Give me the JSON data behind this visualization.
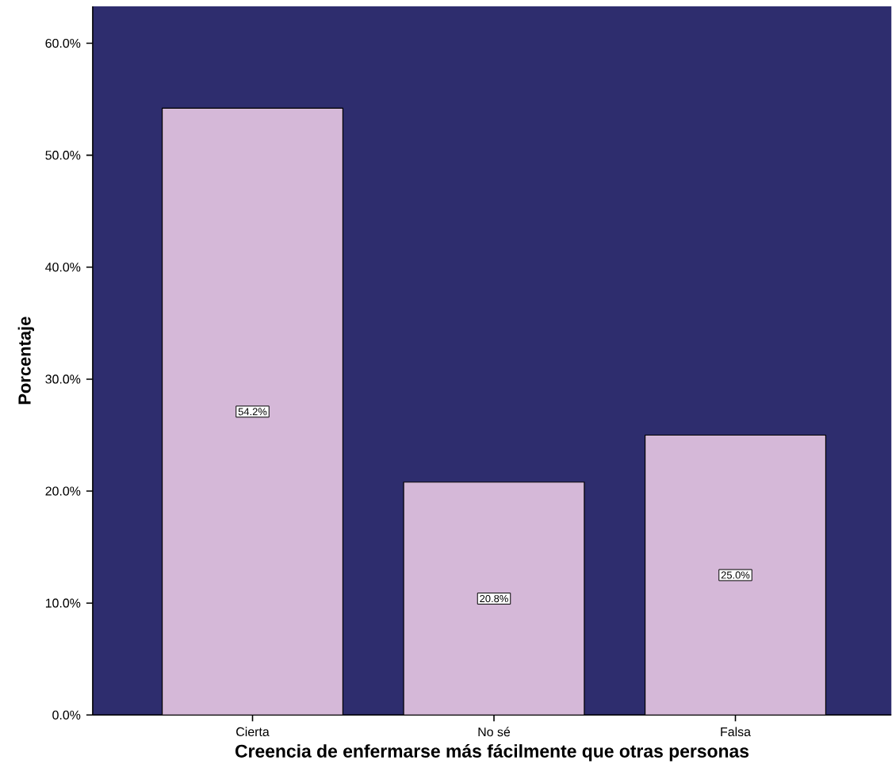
{
  "chart_data": {
    "type": "bar",
    "xlabel": "Creencia de enfermarse más fácilmente que otras personas",
    "ylabel": "Porcentaje",
    "categories": [
      "Cierta",
      "No sé",
      "Falsa"
    ],
    "values": [
      54.2,
      20.8,
      25.0
    ],
    "value_labels": [
      "54.2%",
      "20.8%",
      "25.0%"
    ],
    "color": "#d5b8d8",
    "ylim": [
      0,
      63.3
    ],
    "yticks": [
      {
        "value": 0,
        "label": "0.0%"
      },
      {
        "value": 10,
        "label": "10.0%"
      },
      {
        "value": 20,
        "label": "20.0%"
      },
      {
        "value": 30,
        "label": "30.0%"
      },
      {
        "value": 40,
        "label": "40.0%"
      },
      {
        "value": 50,
        "label": "50.0%"
      },
      {
        "value": 60,
        "label": "60.0%"
      }
    ]
  }
}
